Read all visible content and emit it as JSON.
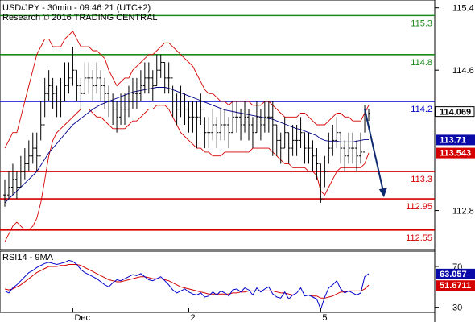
{
  "header": {
    "symbol_line": "USD/JPY - 30min - 09:46:21 (UTC+2)",
    "copyright": "Research © 2016 TRADING CENTRAL"
  },
  "rsi_panel": {
    "title": "RSI14 - 9MA",
    "value_label": "63.057",
    "ma_label": "51.6711"
  },
  "colors": {
    "price": "#000000",
    "bollinger": "#d40000",
    "ma_blue": "#00008b",
    "support": "#d40000",
    "resistance_green": "#1a8a1a",
    "pivot_blue": "#0000cc",
    "arrow": "#0d2a6e",
    "rsi_line": "#0000cc",
    "rsi_ma": "#d40000",
    "badge_black": "#000000",
    "badge_blue": "#0a0aa8",
    "badge_red": "#d40000"
  },
  "chart_data": [
    {
      "type": "line",
      "ylim": [
        112.3,
        115.5
      ],
      "y_ticks": [
        {
          "value": 115.4,
          "label": "115.4"
        },
        {
          "value": 114.6,
          "label": "114.6"
        },
        {
          "value": 112.8,
          "label": "112.8"
        }
      ],
      "x_ticks": [
        "Dec",
        "2",
        "5"
      ],
      "levels": [
        {
          "value": 115.3,
          "label": "115.3",
          "kind": "resistance"
        },
        {
          "value": 114.8,
          "label": "114.8",
          "kind": "resistance"
        },
        {
          "value": 114.2,
          "label": "114.2",
          "kind": "pivot"
        },
        {
          "value": 113.3,
          "label": "113.3",
          "kind": "support"
        },
        {
          "value": 112.95,
          "label": "112.95",
          "kind": "support"
        },
        {
          "value": 112.55,
          "label": "112.55",
          "kind": "support"
        }
      ],
      "last_price": {
        "value": 114.069,
        "label": "114.069"
      },
      "ma_badge": {
        "value": 113.71,
        "label": "113.71"
      },
      "band_badge": {
        "value": 113.543,
        "label": "113.543"
      },
      "arrow": {
        "from_bar": 90,
        "from_value": 114.1,
        "to_bar": 94,
        "to_value": 112.97
      },
      "series": [
        {
          "role": "close",
          "values": [
            113.0,
            113.1,
            113.2,
            113.1,
            113.3,
            113.4,
            113.5,
            113.6,
            113.5,
            113.9,
            114.3,
            114.4,
            114.3,
            114.2,
            114.2,
            114.4,
            114.5,
            114.6,
            114.4,
            114.3,
            114.5,
            114.5,
            114.4,
            114.5,
            114.4,
            114.3,
            114.2,
            114.1,
            114.0,
            114.1,
            114.1,
            114.2,
            114.3,
            114.3,
            114.4,
            114.5,
            114.5,
            114.4,
            114.6,
            114.7,
            114.5,
            114.5,
            114.2,
            114.1,
            114.2,
            114.1,
            114.0,
            114.0,
            114.0,
            114.1,
            113.8,
            113.8,
            113.9,
            113.8,
            113.9,
            113.9,
            113.8,
            114.0,
            114.0,
            113.9,
            114.0,
            113.9,
            113.8,
            114.0,
            113.9,
            114.0,
            114.0,
            113.9,
            113.7,
            113.6,
            113.8,
            113.6,
            113.7,
            113.7,
            113.8,
            113.6,
            113.6,
            113.5,
            113.4,
            112.95,
            113.3,
            113.6,
            113.7,
            113.8,
            113.6,
            113.5,
            113.6,
            113.6,
            113.5,
            113.55,
            114.1,
            114.05
          ]
        },
        {
          "role": "high",
          "values": [
            113.2,
            113.3,
            113.4,
            113.3,
            113.5,
            113.6,
            113.7,
            113.8,
            113.8,
            114.2,
            114.5,
            114.6,
            114.5,
            114.4,
            114.5,
            114.7,
            114.7,
            114.9,
            114.6,
            114.5,
            114.7,
            114.7,
            114.6,
            114.7,
            114.6,
            114.5,
            114.4,
            114.3,
            114.2,
            114.3,
            114.3,
            114.4,
            114.5,
            114.5,
            114.6,
            114.7,
            114.7,
            114.6,
            114.8,
            114.8,
            114.7,
            114.7,
            114.4,
            114.3,
            114.4,
            114.3,
            114.2,
            114.2,
            114.2,
            114.3,
            114.0,
            114.0,
            114.1,
            114.0,
            114.1,
            114.1,
            114.0,
            114.2,
            114.2,
            114.1,
            114.2,
            114.1,
            114.0,
            114.2,
            114.1,
            114.2,
            114.2,
            114.2,
            113.9,
            113.8,
            114.0,
            113.8,
            113.9,
            113.9,
            114.0,
            113.8,
            113.8,
            113.7,
            113.6,
            113.4,
            113.5,
            113.8,
            113.9,
            114.0,
            113.8,
            113.7,
            113.8,
            113.8,
            113.7,
            113.8,
            114.15,
            114.1
          ]
        },
        {
          "role": "low",
          "values": [
            112.85,
            112.95,
            113.0,
            112.95,
            113.1,
            113.2,
            113.3,
            113.4,
            113.3,
            113.7,
            114.0,
            114.2,
            114.1,
            114.0,
            114.0,
            114.2,
            114.3,
            114.4,
            114.2,
            114.1,
            114.3,
            114.3,
            114.2,
            114.3,
            114.2,
            114.1,
            114.0,
            113.9,
            113.8,
            113.9,
            113.9,
            114.0,
            114.1,
            114.1,
            114.2,
            114.3,
            114.3,
            114.2,
            114.4,
            114.5,
            114.3,
            114.3,
            114.0,
            113.9,
            114.0,
            113.9,
            113.8,
            113.8,
            113.6,
            113.9,
            113.6,
            113.6,
            113.7,
            113.6,
            113.7,
            113.7,
            113.6,
            113.8,
            113.8,
            113.7,
            113.8,
            113.7,
            113.6,
            113.8,
            113.7,
            113.8,
            113.8,
            113.5,
            113.5,
            113.4,
            113.6,
            113.4,
            113.5,
            113.5,
            113.6,
            113.4,
            113.4,
            113.3,
            113.2,
            112.9,
            113.1,
            113.4,
            113.5,
            113.6,
            113.4,
            113.3,
            113.4,
            113.4,
            113.3,
            113.4,
            113.8,
            113.95
          ]
        },
        {
          "role": "ma",
          "values": [
            112.9,
            112.95,
            113.0,
            113.05,
            113.1,
            113.15,
            113.2,
            113.25,
            113.3,
            113.38,
            113.46,
            113.54,
            113.6,
            113.66,
            113.72,
            113.78,
            113.84,
            113.9,
            113.94,
            113.98,
            114.02,
            114.06,
            114.1,
            114.13,
            114.16,
            114.18,
            114.2,
            114.22,
            114.24,
            114.26,
            114.28,
            114.3,
            114.32,
            114.33,
            114.34,
            114.35,
            114.36,
            114.37,
            114.38,
            114.38,
            114.38,
            114.37,
            114.35,
            114.33,
            114.31,
            114.29,
            114.27,
            114.25,
            114.23,
            114.21,
            114.19,
            114.17,
            114.15,
            114.13,
            114.11,
            114.09,
            114.08,
            114.07,
            114.06,
            114.05,
            114.04,
            114.03,
            114.02,
            114.01,
            114.0,
            113.99,
            113.98,
            113.97,
            113.95,
            113.93,
            113.91,
            113.89,
            113.87,
            113.85,
            113.84,
            113.82,
            113.8,
            113.78,
            113.76,
            113.72,
            113.7,
            113.69,
            113.69,
            113.69,
            113.68,
            113.68,
            113.68,
            113.68,
            113.69,
            113.7,
            113.71,
            113.71
          ]
        },
        {
          "role": "band_upper",
          "values": [
            113.6,
            113.7,
            113.8,
            113.8,
            114.0,
            114.2,
            114.4,
            114.6,
            114.8,
            114.9,
            115.0,
            115.0,
            114.9,
            114.9,
            114.9,
            115.0,
            115.05,
            115.1,
            115.0,
            114.9,
            114.9,
            114.9,
            114.85,
            114.85,
            114.8,
            114.75,
            114.6,
            114.5,
            114.4,
            114.45,
            114.5,
            114.5,
            114.6,
            114.65,
            114.7,
            114.75,
            114.8,
            114.8,
            114.85,
            114.9,
            114.95,
            114.95,
            114.9,
            114.85,
            114.8,
            114.75,
            114.7,
            114.65,
            114.55,
            114.45,
            114.35,
            114.3,
            114.3,
            114.25,
            114.2,
            114.2,
            114.15,
            114.2,
            114.2,
            114.2,
            114.2,
            114.2,
            114.15,
            114.15,
            114.15,
            114.2,
            114.2,
            114.15,
            114.1,
            114.05,
            114.0,
            114.0,
            114.0,
            114.0,
            114.05,
            114.05,
            114.0,
            113.95,
            113.9,
            113.9,
            113.9,
            113.95,
            114.0,
            114.05,
            114.05,
            114.0,
            114.0,
            113.95,
            113.95,
            113.95,
            114.05,
            114.15
          ]
        },
        {
          "role": "band_lower",
          "values": [
            112.4,
            112.5,
            112.6,
            112.65,
            112.6,
            112.55,
            112.55,
            112.6,
            112.7,
            112.9,
            113.2,
            113.5,
            113.7,
            113.8,
            113.85,
            113.9,
            113.95,
            114.0,
            114.05,
            114.1,
            114.1,
            114.1,
            114.05,
            114.0,
            114.0,
            113.95,
            113.9,
            113.85,
            113.85,
            113.85,
            113.85,
            113.9,
            113.95,
            113.95,
            114.0,
            114.05,
            114.1,
            114.1,
            114.15,
            114.15,
            114.15,
            114.1,
            114.0,
            113.9,
            113.8,
            113.75,
            113.7,
            113.65,
            113.6,
            113.6,
            113.55,
            113.55,
            113.5,
            113.5,
            113.5,
            113.55,
            113.55,
            113.55,
            113.55,
            113.55,
            113.55,
            113.55,
            113.6,
            113.6,
            113.6,
            113.6,
            113.6,
            113.55,
            113.5,
            113.45,
            113.4,
            113.4,
            113.35,
            113.35,
            113.35,
            113.35,
            113.3,
            113.3,
            113.25,
            113.05,
            113.0,
            113.1,
            113.2,
            113.3,
            113.35,
            113.35,
            113.35,
            113.35,
            113.35,
            113.35,
            113.4,
            113.54
          ]
        }
      ]
    },
    {
      "type": "line",
      "ylim": [
        25,
        85
      ],
      "y_ticks": [
        {
          "value": 70,
          "label": "70"
        },
        {
          "value": 30,
          "label": "30"
        }
      ],
      "series": [
        {
          "role": "rsi",
          "values": [
            46,
            44,
            49,
            52,
            56,
            60,
            64,
            66,
            69,
            71,
            73,
            74,
            73,
            72,
            73,
            74,
            76,
            75,
            72,
            67,
            64,
            62,
            60,
            58,
            55,
            52,
            50,
            54,
            57,
            56,
            58,
            60,
            62,
            61,
            63,
            60,
            57,
            56,
            58,
            60,
            56,
            52,
            47,
            44,
            46,
            48,
            45,
            43,
            42,
            44,
            40,
            41,
            45,
            42,
            46,
            44,
            41,
            47,
            48,
            45,
            49,
            47,
            42,
            49,
            45,
            48,
            50,
            43,
            40,
            39,
            45,
            38,
            42,
            44,
            49,
            41,
            42,
            40,
            38,
            28,
            40,
            49,
            52,
            56,
            48,
            44,
            46,
            44,
            42,
            44,
            60,
            63
          ]
        },
        {
          "role": "rsi_ma",
          "values": [
            48,
            47,
            48,
            50,
            52,
            55,
            58,
            61,
            64,
            66,
            68,
            70,
            70,
            70,
            71,
            71,
            72,
            72,
            72,
            71,
            69,
            67,
            65,
            63,
            61,
            59,
            57,
            56,
            55,
            55,
            56,
            57,
            58,
            59,
            60,
            60,
            59,
            58,
            58,
            58,
            57,
            56,
            54,
            52,
            50,
            49,
            48,
            47,
            46,
            45,
            44,
            43,
            43,
            43,
            43,
            43,
            43,
            44,
            44,
            45,
            45,
            46,
            46,
            46,
            46,
            46,
            46,
            46,
            45,
            44,
            44,
            43,
            42,
            42,
            42,
            42,
            42,
            41,
            41,
            39,
            39,
            40,
            41,
            43,
            45,
            45,
            46,
            46,
            46,
            46,
            48,
            51.67
          ]
        }
      ]
    }
  ]
}
